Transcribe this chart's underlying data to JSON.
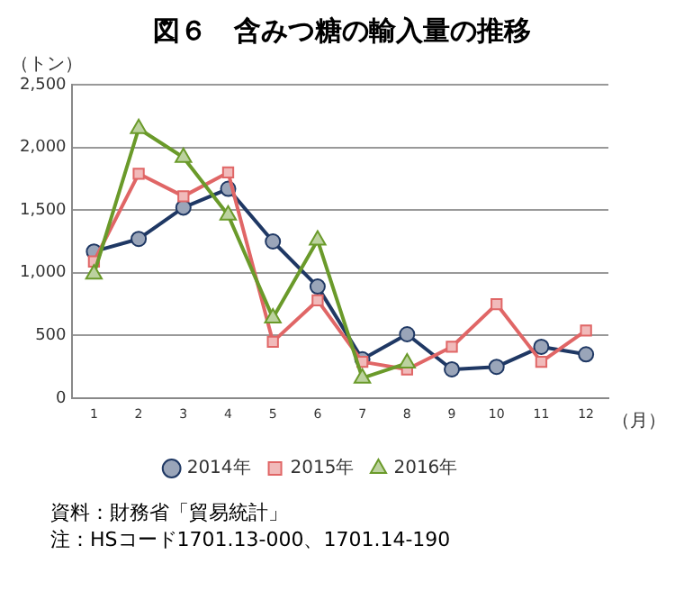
{
  "chart_data": {
    "type": "line",
    "title": "図６　含みつ糖の輸入量の推移",
    "xlabel": "（月）",
    "ylabel": "（トン）",
    "categories": [
      "1",
      "2",
      "3",
      "4",
      "5",
      "6",
      "7",
      "8",
      "9",
      "10",
      "11",
      "12"
    ],
    "series": [
      {
        "name": "2014年",
        "color": "#1f3864",
        "marker": "circle",
        "values": [
          1170,
          1270,
          1520,
          1670,
          1250,
          890,
          310,
          510,
          230,
          250,
          410,
          350
        ]
      },
      {
        "name": "2015年",
        "color": "#e06666",
        "marker": "square",
        "values": [
          1090,
          1790,
          1610,
          1800,
          450,
          780,
          290,
          230,
          410,
          750,
          290,
          540
        ]
      },
      {
        "name": "2016年",
        "color": "#6a9a2a",
        "marker": "triangle",
        "values": [
          990,
          2150,
          1920,
          1460,
          640,
          1260,
          160,
          280,
          null,
          null,
          null,
          null
        ]
      }
    ],
    "ylim": [
      0,
      2500
    ],
    "yticks": [
      {
        "value": 0,
        "label": "0"
      },
      {
        "value": 500,
        "label": "500"
      },
      {
        "value": 1000,
        "label": "1,000"
      },
      {
        "value": 1500,
        "label": "1,500"
      },
      {
        "value": 2000,
        "label": "2,000"
      },
      {
        "value": 2500,
        "label": "2,500"
      }
    ],
    "grid": "y",
    "legend": "bottom",
    "annotations": [
      "資料：財務省「貿易統計」",
      "注：HSコード1701.13-000、1701.14-190"
    ]
  }
}
